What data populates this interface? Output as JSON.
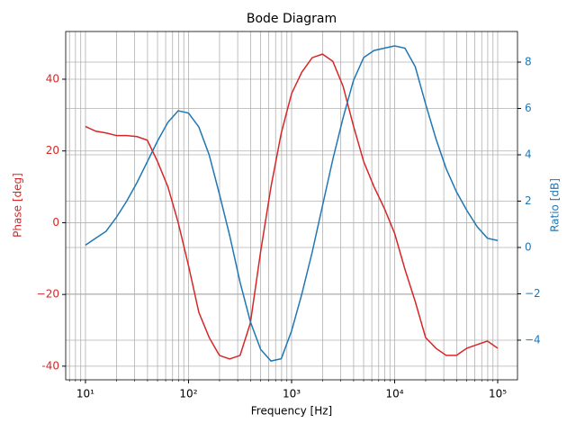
{
  "chart_data": {
    "type": "line",
    "title": "Bode Diagram",
    "x_label": "Frequency [Hz]",
    "y_label": "Phase [deg]",
    "y2_label": "Ratio [dB]",
    "log_x": true,
    "grid": true,
    "x": [
      10,
      12.59,
      15.85,
      19.95,
      25.12,
      31.62,
      39.81,
      50.12,
      63.1,
      79.43,
      100,
      125.9,
      158.5,
      199.5,
      251.2,
      316.2,
      398.1,
      501.2,
      631,
      794.3,
      1000,
      1259,
      1585,
      1995,
      2512,
      3162,
      3981,
      5012,
      6310,
      7943,
      10000,
      12589,
      15849,
      19953,
      25119,
      31623,
      39811,
      50119,
      63096,
      79433,
      100000
    ],
    "series": [
      {
        "name": "Phase",
        "color": "#d62728",
        "axis": "y",
        "values": [
          26.8,
          25.5,
          25,
          24.3,
          24.3,
          24,
          23,
          17,
          10,
          0,
          -12,
          -25,
          -32,
          -37,
          -38,
          -37,
          -28,
          -8,
          10,
          25,
          36,
          42,
          46,
          47,
          45,
          38,
          27,
          17,
          10,
          4,
          -3,
          -13,
          -22,
          -32,
          -35,
          -37,
          -37,
          -35,
          -34,
          -33,
          -35
        ]
      },
      {
        "name": "Ratio",
        "color": "#1f77b4",
        "axis": "y2",
        "values": [
          0.1,
          0.4,
          0.7,
          1.3,
          2.0,
          2.8,
          3.7,
          4.6,
          5.4,
          5.9,
          5.8,
          5.2,
          4.0,
          2.3,
          0.5,
          -1.5,
          -3.2,
          -4.4,
          -4.9,
          -4.8,
          -3.6,
          -2.0,
          -0.2,
          1.8,
          3.8,
          5.6,
          7.2,
          8.2,
          8.5,
          8.6,
          8.7,
          8.6,
          7.8,
          6.2,
          4.7,
          3.4,
          2.4,
          1.6,
          0.9,
          0.4,
          0.3
        ]
      }
    ],
    "xlim": [
      6.43,
      155600
    ],
    "xticks": [
      {
        "value": 10,
        "label": "10¹"
      },
      {
        "value": 100,
        "label": "10²"
      },
      {
        "value": 1000,
        "label": "10³"
      },
      {
        "value": 10000,
        "label": "10⁴"
      },
      {
        "value": 100000,
        "label": "10⁵"
      }
    ],
    "xminorticks": [
      7,
      8,
      9,
      20,
      30,
      40,
      50,
      60,
      70,
      80,
      90,
      200,
      300,
      400,
      500,
      600,
      700,
      800,
      900,
      2000,
      3000,
      4000,
      5000,
      6000,
      7000,
      8000,
      9000,
      20000,
      30000,
      40000,
      50000,
      60000,
      70000,
      80000,
      90000
    ],
    "ylim": [
      -43.8,
      53.3
    ],
    "yticks": [
      -40,
      {
        "value": -20,
        "label": "−20"
      },
      0,
      20,
      40
    ],
    "y2lim": [
      -5.71,
      9.32
    ],
    "y2ticks": [
      {
        "value": -4,
        "label": "−4"
      },
      {
        "value": -2,
        "label": "−2"
      },
      0,
      2,
      4,
      6,
      8
    ]
  }
}
